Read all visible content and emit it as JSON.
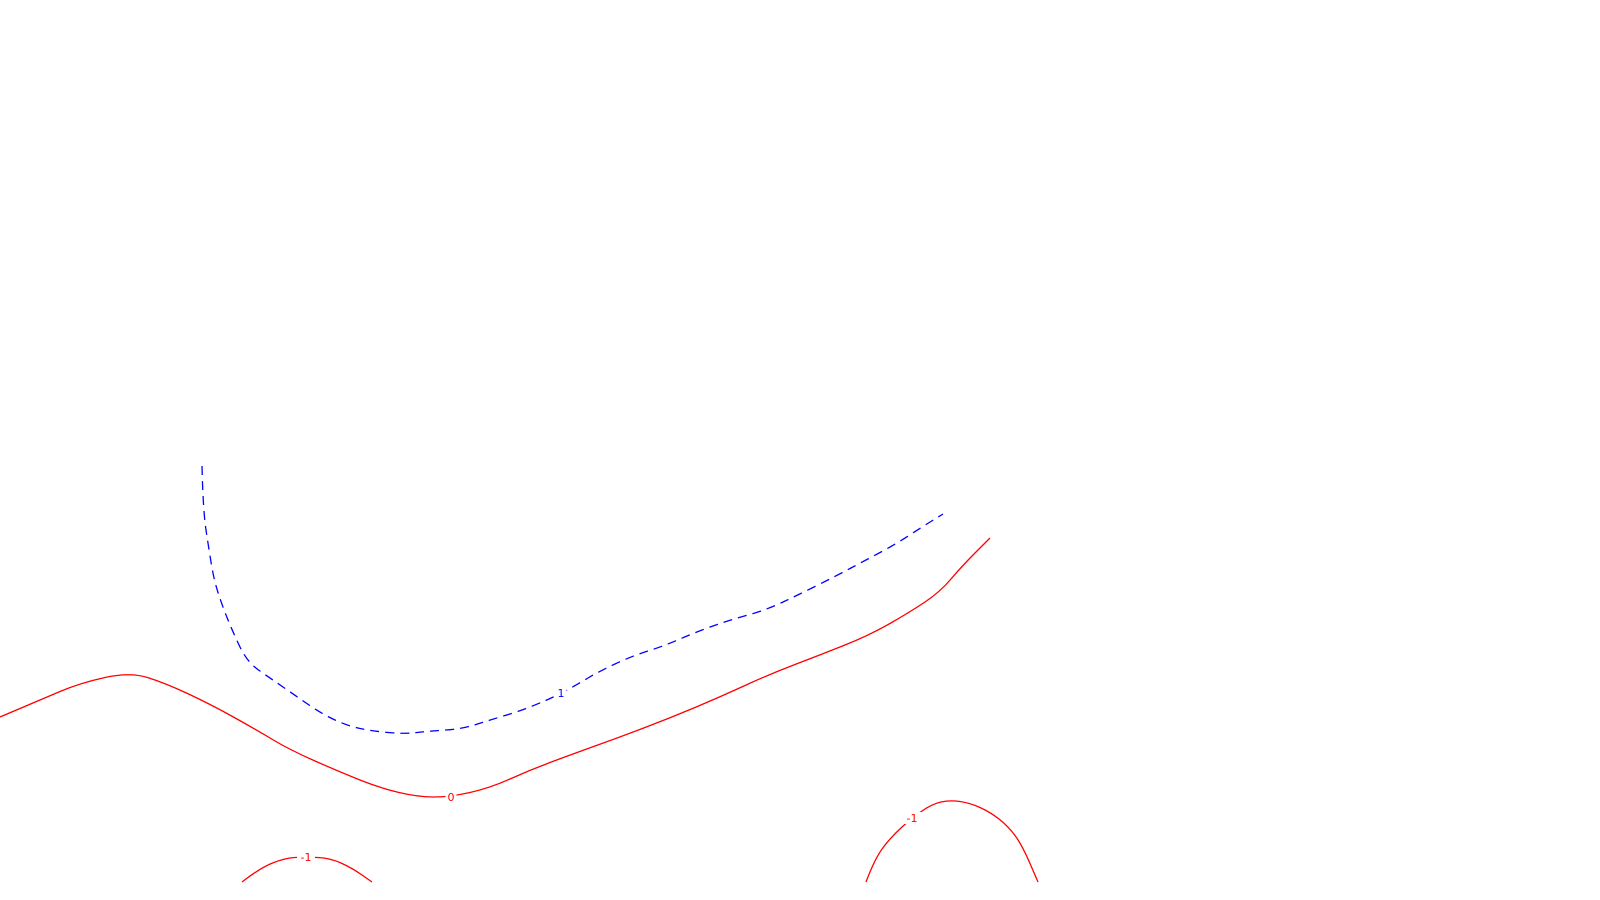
{
  "chart_data": {
    "type": "contour",
    "title": "",
    "xlabel": "",
    "ylabel": "",
    "grid": false,
    "legend": "none",
    "levels": [
      {
        "level": "1",
        "label": "1",
        "color": "#0000ff",
        "style": "dashed",
        "paths": [
          [
            [
              202,
              466
            ],
            [
              203,
              510
            ],
            [
              209,
              550
            ],
            [
              214,
              580
            ],
            [
              222,
              605
            ],
            [
              232,
              630
            ],
            [
              247,
              662
            ],
            [
              270,
              678
            ],
            [
              296,
              696
            ],
            [
              322,
              714
            ],
            [
              348,
              726
            ],
            [
              372,
              731
            ],
            [
              404,
              734
            ],
            [
              430,
              731
            ],
            [
              462,
              729
            ],
            [
              490,
              720
            ],
            [
              520,
              711
            ],
            [
              540,
              703
            ],
            [
              558,
              695
            ],
            [
              578,
              684
            ],
            [
              598,
              672
            ],
            [
              632,
              656
            ],
            [
              664,
              646
            ],
            [
              696,
              632
            ],
            [
              730,
              620
            ],
            [
              766,
              610
            ],
            [
              800,
              594
            ],
            [
              836,
              576
            ],
            [
              866,
              560
            ],
            [
              896,
              544
            ],
            [
              922,
              527
            ],
            [
              943,
              514
            ]
          ]
        ],
        "label_at": [
          [
            561,
            693
          ]
        ]
      },
      {
        "level": "0",
        "label": "0",
        "color": "#ff0000",
        "style": "solid",
        "paths": [
          [
            [
              0,
              717
            ],
            [
              40,
              700
            ],
            [
              80,
              683
            ],
            [
              130,
              672
            ],
            [
              165,
              683
            ],
            [
              210,
              704
            ],
            [
              255,
              729
            ],
            [
              290,
              750
            ],
            [
              340,
              772
            ],
            [
              380,
              788
            ],
            [
              418,
              797
            ],
            [
              450,
              797
            ],
            [
              490,
              788
            ],
            [
              530,
              770
            ],
            [
              570,
              755
            ],
            [
              620,
              737
            ],
            [
              670,
              718
            ],
            [
              720,
              697
            ],
            [
              770,
              674
            ],
            [
              820,
              655
            ],
            [
              870,
              635
            ],
            [
              910,
              612
            ],
            [
              940,
              592
            ],
            [
              962,
              566
            ],
            [
              990,
              538
            ]
          ]
        ],
        "label_at": [
          [
            451,
            797
          ]
        ]
      },
      {
        "level": "-1",
        "label": "-1",
        "color": "#ff0000",
        "style": "solid",
        "paths": [
          [
            [
              242,
              882
            ],
            [
              260,
              868
            ],
            [
              285,
              858
            ],
            [
              305,
              857
            ],
            [
              330,
              858
            ],
            [
              352,
              868
            ],
            [
              372,
              882
            ]
          ],
          [
            [
              866,
              882
            ],
            [
              875,
              858
            ],
            [
              892,
              836
            ],
            [
              912,
              818
            ],
            [
              932,
              804
            ],
            [
              950,
              800
            ],
            [
              970,
              803
            ],
            [
              990,
              812
            ],
            [
              1008,
              826
            ],
            [
              1022,
              845
            ],
            [
              1038,
              882
            ]
          ]
        ],
        "label_at": [
          [
            306,
            857
          ],
          [
            912,
            818
          ]
        ]
      }
    ]
  }
}
